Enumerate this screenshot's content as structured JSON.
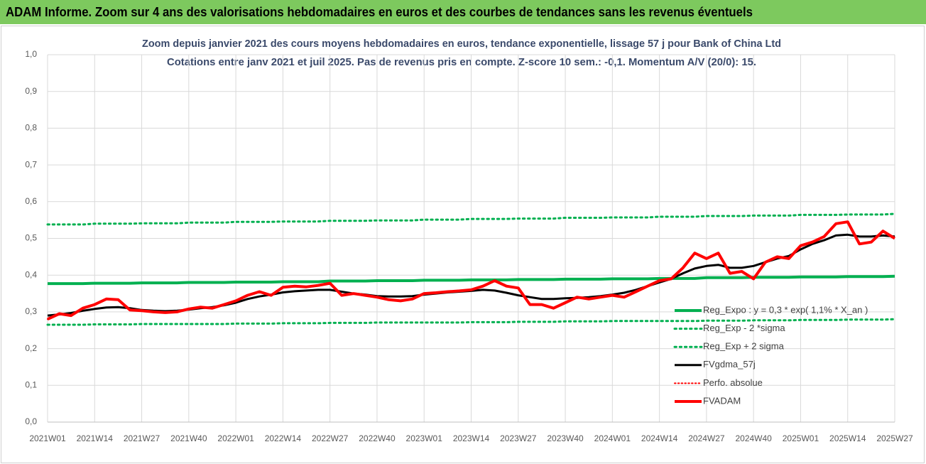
{
  "header": {
    "title": "ADAM Informe. Zoom sur 4 ans des valorisations hebdomadaires en euros et des courbes de tendances sans les revenus éventuels"
  },
  "chart_data": {
    "type": "line",
    "title": "Zoom depuis janvier 2021 des cours moyens hebdomadaires en euros, tendance exponentielle, lissage 57 j pour Bank of China Ltd",
    "subtitle": "Cotations entre janv 2021 et juil 2025. Pas de revenus pris en compte. Z-score 10 sem.: -0,1. Momentum A/V (20/0): 15.",
    "categories": [
      "2021W01",
      null,
      null,
      null,
      "2021W14",
      null,
      null,
      null,
      "2021W27",
      null,
      null,
      null,
      "2021W40",
      null,
      null,
      null,
      "2022W01",
      null,
      null,
      null,
      "2022W14",
      null,
      null,
      null,
      "2022W27",
      null,
      null,
      null,
      "2022W40",
      null,
      null,
      null,
      "2023W01",
      null,
      null,
      null,
      "2023W14",
      null,
      null,
      null,
      "2023W27",
      null,
      null,
      null,
      "2023W40",
      null,
      null,
      null,
      "2024W01",
      null,
      null,
      null,
      "2024W14",
      null,
      null,
      null,
      "2024W27",
      null,
      null,
      null,
      "2024W40",
      null,
      null,
      null,
      "2025W01",
      null,
      null,
      null,
      "2025W14",
      null,
      null,
      null,
      "2025W27"
    ],
    "ylim": [
      0,
      1
    ],
    "yticks": [
      {
        "value": 0,
        "label": "0,0"
      },
      {
        "value": 0.1,
        "label": "0,1"
      },
      {
        "value": 0.2,
        "label": "0,2"
      },
      {
        "value": 0.3,
        "label": "0,3"
      },
      {
        "value": 0.4,
        "label": "0,4"
      },
      {
        "value": 0.5,
        "label": "0,5"
      },
      {
        "value": 0.6,
        "label": "0,6"
      },
      {
        "value": 0.7,
        "label": "0,7"
      },
      {
        "value": 0.8,
        "label": "0,8"
      },
      {
        "value": 0.9,
        "label": "0,9"
      },
      {
        "value": 1,
        "label": "1,0"
      }
    ],
    "grid": true,
    "legend": "right",
    "series": [
      {
        "name": "Reg_Expo : y = 0,3 * exp( 1,1% *  X_an )",
        "color": "#00b050",
        "style": "solid",
        "width": 4,
        "values": [
          0.377,
          0.377,
          0.377,
          0.377,
          0.378,
          0.378,
          0.378,
          0.378,
          0.379,
          0.379,
          0.379,
          0.379,
          0.38,
          0.38,
          0.38,
          0.38,
          0.381,
          0.381,
          0.381,
          0.381,
          0.382,
          0.382,
          0.382,
          0.382,
          0.384,
          0.384,
          0.384,
          0.384,
          0.385,
          0.385,
          0.385,
          0.385,
          0.386,
          0.386,
          0.386,
          0.386,
          0.387,
          0.387,
          0.387,
          0.387,
          0.388,
          0.388,
          0.388,
          0.388,
          0.389,
          0.389,
          0.389,
          0.389,
          0.39,
          0.39,
          0.39,
          0.39,
          0.391,
          0.391,
          0.391,
          0.391,
          0.393,
          0.393,
          0.393,
          0.393,
          0.394,
          0.394,
          0.394,
          0.394,
          0.395,
          0.395,
          0.395,
          0.395,
          0.396,
          0.396,
          0.396,
          0.396,
          0.397
        ]
      },
      {
        "name": "Reg_Exp - 2 *sigma",
        "color": "#00b050",
        "style": "dotted",
        "width": 3,
        "values": [
          0.265,
          0.265,
          0.265,
          0.265,
          0.266,
          0.266,
          0.266,
          0.266,
          0.267,
          0.267,
          0.267,
          0.267,
          0.267,
          0.267,
          0.267,
          0.267,
          0.268,
          0.268,
          0.268,
          0.268,
          0.269,
          0.269,
          0.269,
          0.269,
          0.27,
          0.27,
          0.27,
          0.27,
          0.271,
          0.271,
          0.271,
          0.271,
          0.271,
          0.271,
          0.271,
          0.271,
          0.272,
          0.272,
          0.272,
          0.272,
          0.273,
          0.273,
          0.273,
          0.273,
          0.274,
          0.274,
          0.274,
          0.274,
          0.275,
          0.275,
          0.275,
          0.275,
          0.275,
          0.275,
          0.275,
          0.275,
          0.276,
          0.276,
          0.276,
          0.276,
          0.277,
          0.277,
          0.277,
          0.277,
          0.278,
          0.278,
          0.278,
          0.278,
          0.279,
          0.279,
          0.279,
          0.279,
          0.28
        ]
      },
      {
        "name": "Reg_Exp + 2 sigma",
        "color": "#00b050",
        "style": "dotted",
        "width": 3,
        "values": [
          0.538,
          0.538,
          0.538,
          0.538,
          0.54,
          0.54,
          0.54,
          0.54,
          0.541,
          0.541,
          0.541,
          0.541,
          0.543,
          0.543,
          0.543,
          0.543,
          0.545,
          0.545,
          0.545,
          0.545,
          0.546,
          0.546,
          0.546,
          0.546,
          0.548,
          0.548,
          0.548,
          0.548,
          0.549,
          0.549,
          0.549,
          0.549,
          0.551,
          0.551,
          0.551,
          0.551,
          0.553,
          0.553,
          0.553,
          0.553,
          0.554,
          0.554,
          0.554,
          0.554,
          0.556,
          0.556,
          0.556,
          0.556,
          0.557,
          0.557,
          0.557,
          0.557,
          0.559,
          0.559,
          0.559,
          0.559,
          0.561,
          0.561,
          0.561,
          0.561,
          0.562,
          0.562,
          0.562,
          0.562,
          0.564,
          0.564,
          0.564,
          0.564,
          0.565,
          0.565,
          0.565,
          0.565,
          0.567
        ]
      },
      {
        "name": "FVgdma_57j",
        "color": "#000000",
        "style": "solid",
        "width": 3,
        "values": [
          0.29,
          0.293,
          0.297,
          0.303,
          0.308,
          0.312,
          0.313,
          0.31,
          0.305,
          0.303,
          0.302,
          0.303,
          0.306,
          0.31,
          0.313,
          0.318,
          0.325,
          0.335,
          0.342,
          0.347,
          0.353,
          0.356,
          0.358,
          0.36,
          0.36,
          0.355,
          0.35,
          0.347,
          0.343,
          0.342,
          0.342,
          0.343,
          0.347,
          0.35,
          0.353,
          0.355,
          0.357,
          0.36,
          0.358,
          0.352,
          0.345,
          0.34,
          0.335,
          0.335,
          0.337,
          0.338,
          0.34,
          0.343,
          0.347,
          0.352,
          0.36,
          0.37,
          0.38,
          0.39,
          0.405,
          0.418,
          0.425,
          0.428,
          0.42,
          0.42,
          0.425,
          0.435,
          0.445,
          0.452,
          0.47,
          0.485,
          0.495,
          0.508,
          0.51,
          0.505,
          0.505,
          0.508,
          0.505
        ]
      },
      {
        "name": "Perfo. absolue",
        "color": "#ff0000",
        "style": "dotted",
        "width": 2,
        "values": [
          0.28,
          0.295,
          0.29,
          0.31,
          0.32,
          0.335,
          0.333,
          0.305,
          0.303,
          0.3,
          0.298,
          0.3,
          0.308,
          0.313,
          0.31,
          0.32,
          0.33,
          0.345,
          0.355,
          0.345,
          0.367,
          0.37,
          0.368,
          0.372,
          0.378,
          0.345,
          0.35,
          0.345,
          0.34,
          0.333,
          0.33,
          0.335,
          0.35,
          0.352,
          0.355,
          0.357,
          0.36,
          0.37,
          0.385,
          0.37,
          0.365,
          0.32,
          0.32,
          0.31,
          0.325,
          0.34,
          0.335,
          0.34,
          0.345,
          0.34,
          0.355,
          0.37,
          0.385,
          0.39,
          0.42,
          0.46,
          0.445,
          0.46,
          0.405,
          0.41,
          0.39,
          0.435,
          0.45,
          0.445,
          0.48,
          0.49,
          0.505,
          0.54,
          0.545,
          0.485,
          0.49,
          0.52,
          0.5
        ]
      },
      {
        "name": "FVADAM",
        "color": "#ff0000",
        "style": "solid",
        "width": 4,
        "values": [
          0.28,
          0.295,
          0.29,
          0.31,
          0.32,
          0.335,
          0.333,
          0.305,
          0.303,
          0.3,
          0.298,
          0.3,
          0.308,
          0.313,
          0.31,
          0.32,
          0.33,
          0.345,
          0.355,
          0.345,
          0.367,
          0.37,
          0.368,
          0.372,
          0.378,
          0.345,
          0.35,
          0.345,
          0.34,
          0.333,
          0.33,
          0.335,
          0.35,
          0.352,
          0.355,
          0.357,
          0.36,
          0.37,
          0.385,
          0.37,
          0.365,
          0.32,
          0.32,
          0.31,
          0.325,
          0.34,
          0.335,
          0.34,
          0.345,
          0.34,
          0.355,
          0.37,
          0.385,
          0.39,
          0.42,
          0.46,
          0.445,
          0.46,
          0.405,
          0.41,
          0.39,
          0.435,
          0.45,
          0.445,
          0.48,
          0.49,
          0.505,
          0.54,
          0.545,
          0.485,
          0.49,
          0.52,
          0.5
        ]
      }
    ]
  }
}
